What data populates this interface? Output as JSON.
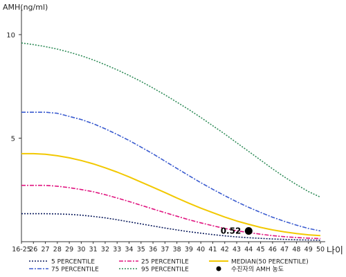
{
  "chart_data": {
    "type": "line",
    "ylabel": "AMH(ng/ml)",
    "xlabel": "나이",
    "ylim": [
      0,
      11
    ],
    "yticks": [
      5,
      10
    ],
    "categories": [
      "16-25",
      "26",
      "27",
      "28",
      "29",
      "30",
      "31",
      "32",
      "33",
      "34",
      "35",
      "36",
      "37",
      "38",
      "39",
      "40",
      "41",
      "42",
      "43",
      "44",
      "45",
      "46",
      "47",
      "48",
      "49",
      "50"
    ],
    "series": [
      {
        "name": "5 PERCENTILE",
        "color": "#0a1a5c",
        "dash": "2 2",
        "values": [
          1.35,
          1.35,
          1.35,
          1.34,
          1.32,
          1.28,
          1.22,
          1.15,
          1.06,
          0.96,
          0.86,
          0.76,
          0.66,
          0.57,
          0.48,
          0.41,
          0.34,
          0.28,
          0.23,
          0.19,
          0.16,
          0.13,
          0.11,
          0.09,
          0.08,
          0.07
        ]
      },
      {
        "name": "25 PERCENTILE",
        "color": "#e0137f",
        "dash": "6 2 2 2",
        "values": [
          2.72,
          2.72,
          2.72,
          2.68,
          2.61,
          2.52,
          2.41,
          2.27,
          2.11,
          1.94,
          1.76,
          1.58,
          1.4,
          1.23,
          1.06,
          0.91,
          0.77,
          0.64,
          0.53,
          0.44,
          0.36,
          0.29,
          0.24,
          0.2,
          0.17,
          0.15
        ]
      },
      {
        "name": "MEDIAN(50 PERCENTILE)",
        "color": "#f2c800",
        "dash": "",
        "values": [
          4.25,
          4.25,
          4.22,
          4.15,
          4.05,
          3.92,
          3.76,
          3.57,
          3.36,
          3.13,
          2.88,
          2.63,
          2.37,
          2.11,
          1.86,
          1.62,
          1.4,
          1.19,
          1.0,
          0.84,
          0.69,
          0.57,
          0.47,
          0.39,
          0.33,
          0.29
        ]
      },
      {
        "name": "75 PERCENTILE",
        "color": "#3a5bcf",
        "dash": "6 2 2 2",
        "values": [
          6.25,
          6.25,
          6.25,
          6.2,
          6.05,
          5.9,
          5.7,
          5.45,
          5.18,
          4.89,
          4.57,
          4.24,
          3.89,
          3.54,
          3.19,
          2.85,
          2.53,
          2.22,
          1.93,
          1.66,
          1.41,
          1.18,
          0.98,
          0.8,
          0.64,
          0.52
        ]
      },
      {
        "name": "95 PERCENTILE",
        "color": "#2e8b57",
        "dash": "2 2",
        "values": [
          9.6,
          9.52,
          9.42,
          9.3,
          9.15,
          8.98,
          8.78,
          8.55,
          8.3,
          8.03,
          7.74,
          7.42,
          7.09,
          6.74,
          6.38,
          6.0,
          5.6,
          5.2,
          4.78,
          4.36,
          3.94,
          3.52,
          3.12,
          2.76,
          2.42,
          2.15
        ]
      }
    ],
    "marker": {
      "name": "수진자의 AMH 농도",
      "x": "44",
      "y": 0.52,
      "label": "0.52",
      "color": "#000000"
    },
    "legend": {
      "placement": "bottom",
      "columns": 3
    },
    "grid": false
  }
}
